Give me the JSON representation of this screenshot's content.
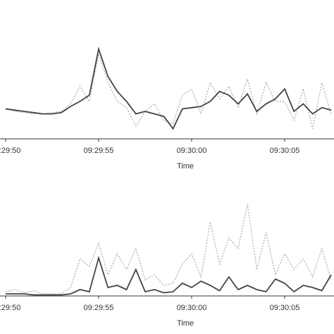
{
  "chart_data": [
    {
      "type": "line",
      "x_label": "Time",
      "x": [
        34190,
        34190.5,
        34191,
        34191.5,
        34192,
        34192.5,
        34193,
        34193.5,
        34194,
        34194.5,
        34195,
        34195.5,
        34196,
        34196.5,
        34197,
        34197.5,
        34198,
        34198.5,
        34199,
        34199.5,
        34200,
        34200.5,
        34201,
        34201.5,
        34202,
        34202.5,
        34203,
        34203.5,
        34204,
        34204.5,
        34205,
        34205.5,
        34206,
        34206.5,
        34207,
        34207.5
      ],
      "xlim": [
        34189.7,
        34207.65
      ],
      "xticks": [
        {
          "value": 34190,
          "label": "09:29:50"
        },
        {
          "value": 34195,
          "label": "09:29:55"
        },
        {
          "value": 34200,
          "label": "09:30:00"
        },
        {
          "value": 34205,
          "label": "09:30:05"
        }
      ],
      "ylim": [
        0,
        100
      ],
      "series": [
        {
          "color": "#aaaaaa",
          "dash": true,
          "values": [
            24,
            22,
            21,
            20,
            20,
            21,
            22,
            28,
            42,
            30,
            68,
            45,
            30,
            25,
            10,
            22,
            28,
            15,
            12,
            35,
            40,
            20,
            45,
            32,
            42,
            25,
            48,
            20,
            45,
            30,
            30,
            15,
            40,
            8,
            45,
            20
          ]
        },
        {
          "color": "#444444",
          "dash": false,
          "values": [
            24,
            23,
            22,
            21,
            20,
            20,
            21,
            26,
            30,
            35,
            72,
            50,
            38,
            30,
            20,
            22,
            20,
            18,
            8,
            24,
            25,
            26,
            30,
            38,
            35,
            28,
            36,
            22,
            28,
            32,
            40,
            22,
            28,
            20,
            25,
            23
          ]
        }
      ]
    },
    {
      "type": "line",
      "x_label": "Time",
      "x": [
        34190,
        34190.5,
        34191,
        34191.5,
        34192,
        34192.5,
        34193,
        34193.5,
        34194,
        34194.5,
        34195,
        34195.5,
        34196,
        34196.5,
        34197,
        34197.5,
        34198,
        34198.5,
        34199,
        34199.5,
        34200,
        34200.5,
        34201,
        34201.5,
        34202,
        34202.5,
        34203,
        34203.5,
        34204,
        34204.5,
        34205,
        34205.5,
        34206,
        34206.5,
        34207,
        34207.5
      ],
      "xlim": [
        34189.7,
        34207.65
      ],
      "xticks": [
        {
          "value": 34190,
          "label": "09:29:50"
        },
        {
          "value": 34195,
          "label": "09:29:55"
        },
        {
          "value": 34200,
          "label": "09:30:00"
        },
        {
          "value": 34205,
          "label": "09:30:05"
        }
      ],
      "ylim": [
        0,
        100
      ],
      "series": [
        {
          "color": "#aaaaaa",
          "dash": true,
          "values": [
            4,
            6,
            3,
            5,
            2,
            2,
            2,
            8,
            35,
            28,
            50,
            20,
            40,
            25,
            45,
            15,
            20,
            10,
            12,
            30,
            40,
            18,
            70,
            30,
            55,
            45,
            87,
            25,
            60,
            20,
            40,
            25,
            35,
            18,
            45,
            15
          ]
        },
        {
          "color": "#444444",
          "dash": false,
          "values": [
            2,
            2,
            2,
            1,
            1,
            1,
            1,
            2,
            6,
            4,
            36,
            8,
            10,
            6,
            25,
            4,
            6,
            3,
            4,
            12,
            8,
            14,
            10,
            5,
            18,
            6,
            10,
            6,
            4,
            16,
            12,
            4,
            10,
            8,
            5,
            20
          ]
        }
      ]
    }
  ]
}
